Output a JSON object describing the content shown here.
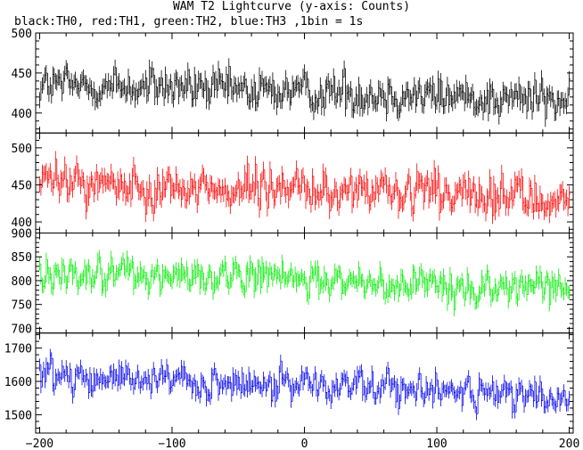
{
  "chart_data": {
    "type": "line",
    "title": "WAM T2 Lightcurve (y-axis: Counts)",
    "subtitle": "black:TH0, red:TH1, green:TH2, blue:TH3 ,1bin = 1s",
    "xlim": [
      -203,
      203
    ],
    "xticks": [
      -200,
      -100,
      0,
      100,
      200
    ],
    "grid": false,
    "panels": [
      {
        "name": "TH0",
        "color": "#000000",
        "ylim": [
          375,
          500
        ],
        "yticks": [
          400,
          450,
          500
        ],
        "mean_start": 435,
        "mean_end": 418,
        "noise": 20
      },
      {
        "name": "TH1",
        "color": "#ff0000",
        "ylim": [
          385,
          520
        ],
        "yticks": [
          400,
          450,
          500
        ],
        "mean_start": 455,
        "mean_end": 430,
        "noise": 22
      },
      {
        "name": "TH2",
        "color": "#00ee00",
        "ylim": [
          690,
          900
        ],
        "yticks": [
          700,
          750,
          800,
          850,
          900
        ],
        "mean_start": 820,
        "mean_end": 780,
        "noise": 28
      },
      {
        "name": "TH3",
        "color": "#0000ee",
        "ylim": [
          1445,
          1745
        ],
        "yticks": [
          1500,
          1600,
          1700
        ],
        "mean_start": 1620,
        "mean_end": 1555,
        "noise": 38
      }
    ]
  }
}
